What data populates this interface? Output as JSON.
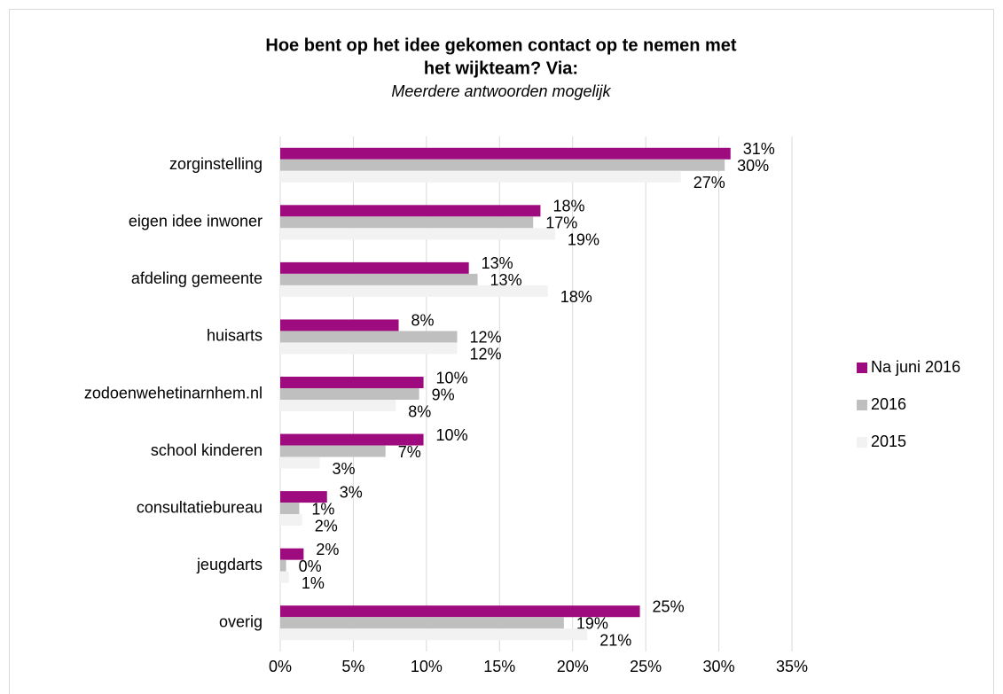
{
  "chart_data": {
    "type": "barh",
    "title": [
      "Hoe bent op het idee gekomen contact op te nemen met",
      "het wijkteam? Via:"
    ],
    "subtitle": "Meerdere antwoorden mogelijk",
    "categories": [
      "zorginstelling",
      "eigen idee inwoner",
      "afdeling gemeente",
      "huisarts",
      "zodoenwehetinarnhem.nl",
      "school kinderen",
      "consultatiebureau",
      "jeugdarts",
      "overig"
    ],
    "series": [
      {
        "name": "Na juni 2016",
        "color": "#9e0b7f",
        "values": [
          30.8,
          17.8,
          12.9,
          8.1,
          9.8,
          9.8,
          3.2,
          1.6,
          24.6
        ],
        "value_labels": [
          "31%",
          "18%",
          "13%",
          "8%",
          "10%",
          "10%",
          "3%",
          "2%",
          "25%"
        ]
      },
      {
        "name": "2016",
        "color": "#bfbfbf",
        "values": [
          30.4,
          17.3,
          13.5,
          12.1,
          9.5,
          7.2,
          1.3,
          0.4,
          19.4
        ],
        "value_labels": [
          "30%",
          "17%",
          "13%",
          "12%",
          "9%",
          "7%",
          "1%",
          "0%",
          "19%"
        ]
      },
      {
        "name": "2015",
        "color": "#f2f2f2",
        "values": [
          27.4,
          18.8,
          18.3,
          12.1,
          7.9,
          2.7,
          1.5,
          0.6,
          21.0
        ],
        "value_labels": [
          "27%",
          "19%",
          "18%",
          "12%",
          "8%",
          "3%",
          "2%",
          "1%",
          "21%"
        ]
      }
    ],
    "xlim": [
      0,
      35
    ],
    "xticks": [
      {
        "value": 0,
        "label": "0%"
      },
      {
        "value": 5,
        "label": "5%"
      },
      {
        "value": 10,
        "label": "10%"
      },
      {
        "value": 15,
        "label": "15%"
      },
      {
        "value": 20,
        "label": "20%"
      },
      {
        "value": 25,
        "label": "25%"
      },
      {
        "value": 30,
        "label": "30%"
      },
      {
        "value": 35,
        "label": "35%"
      }
    ],
    "grid": true,
    "legend": "right"
  }
}
